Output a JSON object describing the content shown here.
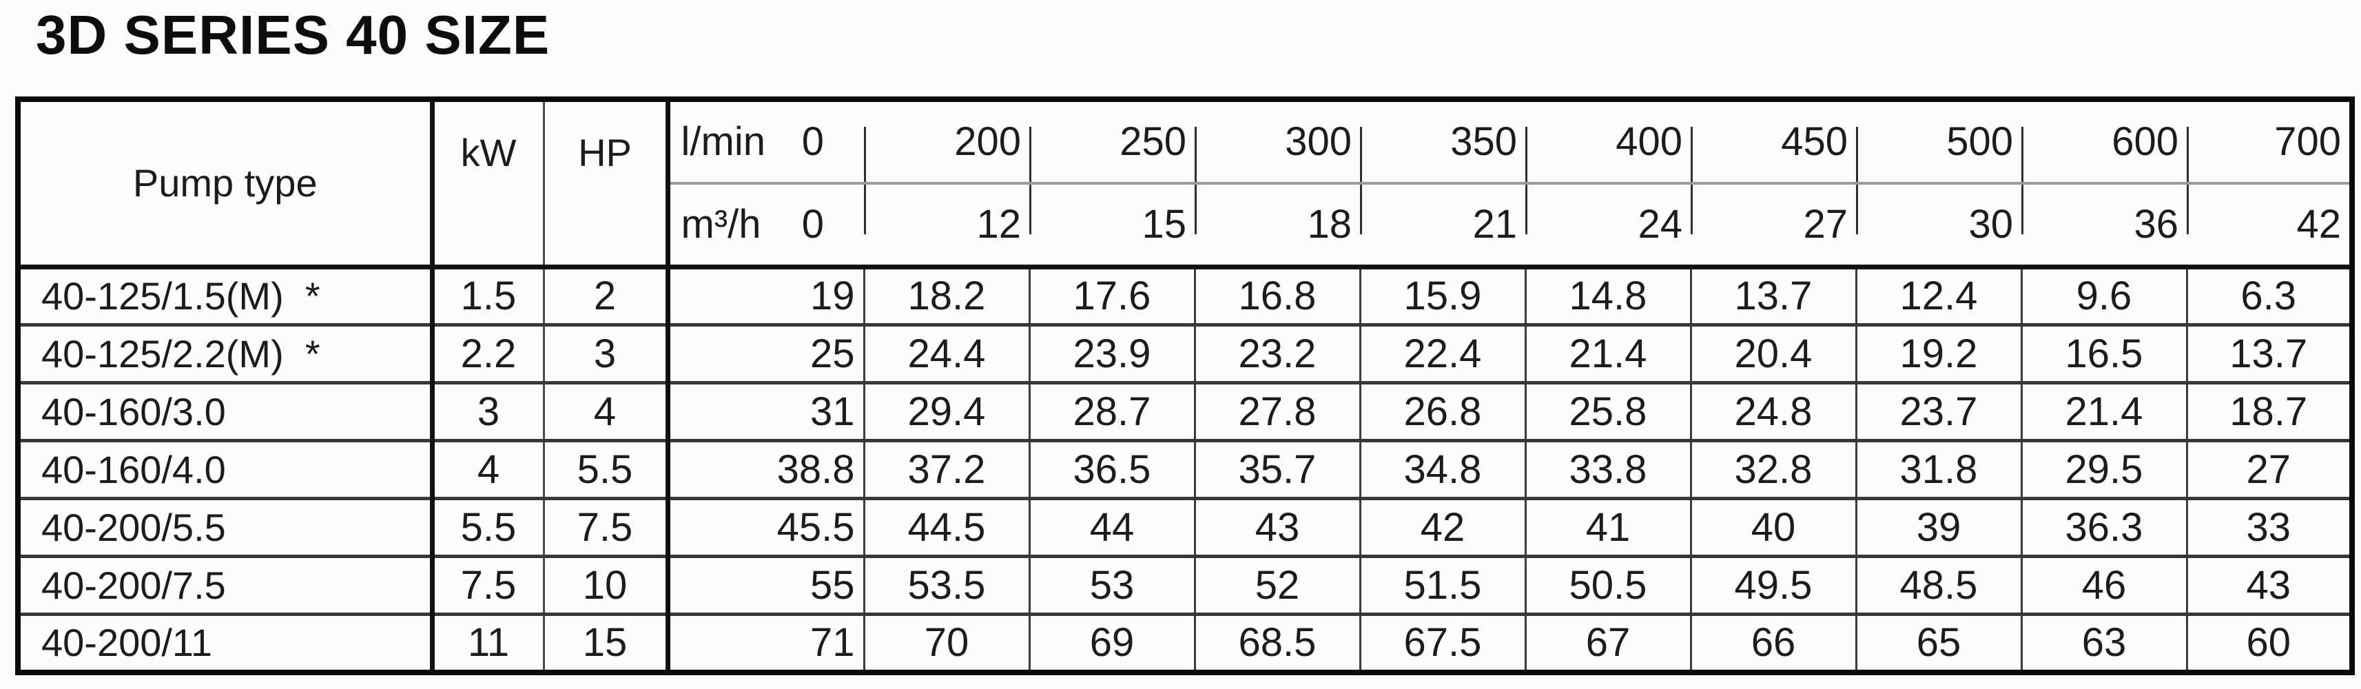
{
  "title": "3D SERIES 40 SIZE",
  "table": {
    "headers": {
      "pump_type": "Pump type",
      "kw": "kW",
      "hp": "HP"
    },
    "flow_header_rows": [
      {
        "unit": "l/min",
        "values": [
          "0",
          "200",
          "250",
          "300",
          "350",
          "400",
          "450",
          "500",
          "600",
          "700"
        ]
      },
      {
        "unit": "m³/h",
        "values": [
          "0",
          "12",
          "15",
          "18",
          "21",
          "24",
          "27",
          "30",
          "36",
          "42"
        ]
      }
    ],
    "rows": [
      {
        "pump_type": "40-125/1.5(M)  *",
        "kw": "1.5",
        "hp": "2",
        "heads": [
          "19",
          "18.2",
          "17.6",
          "16.8",
          "15.9",
          "14.8",
          "13.7",
          "12.4",
          "9.6",
          "6.3"
        ]
      },
      {
        "pump_type": "40-125/2.2(M)  *",
        "kw": "2.2",
        "hp": "3",
        "heads": [
          "25",
          "24.4",
          "23.9",
          "23.2",
          "22.4",
          "21.4",
          "20.4",
          "19.2",
          "16.5",
          "13.7"
        ]
      },
      {
        "pump_type": "40-160/3.0",
        "kw": "3",
        "hp": "4",
        "heads": [
          "31",
          "29.4",
          "28.7",
          "27.8",
          "26.8",
          "25.8",
          "24.8",
          "23.7",
          "21.4",
          "18.7"
        ]
      },
      {
        "pump_type": "40-160/4.0",
        "kw": "4",
        "hp": "5.5",
        "heads": [
          "38.8",
          "37.2",
          "36.5",
          "35.7",
          "34.8",
          "33.8",
          "32.8",
          "31.8",
          "29.5",
          "27"
        ]
      },
      {
        "pump_type": "40-200/5.5",
        "kw": "5.5",
        "hp": "7.5",
        "heads": [
          "45.5",
          "44.5",
          "44",
          "43",
          "42",
          "41",
          "40",
          "39",
          "36.3",
          "33"
        ]
      },
      {
        "pump_type": "40-200/7.5",
        "kw": "7.5",
        "hp": "10",
        "heads": [
          "55",
          "53.5",
          "53",
          "52",
          "51.5",
          "50.5",
          "49.5",
          "48.5",
          "46",
          "43"
        ]
      },
      {
        "pump_type": "40-200/11",
        "kw": "11",
        "hp": "15",
        "heads": [
          "71",
          "70",
          "69",
          "68.5",
          "67.5",
          "67",
          "66",
          "65",
          "63",
          "60"
        ]
      }
    ]
  }
}
